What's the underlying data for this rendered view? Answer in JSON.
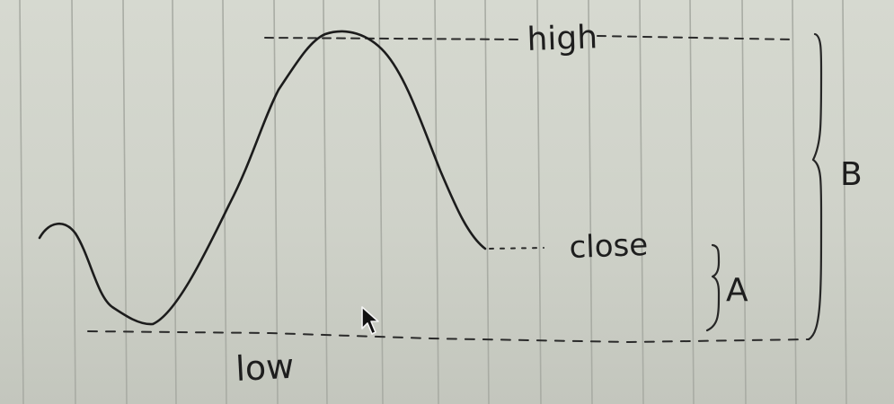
{
  "watermark": "",
  "labels": {
    "high": "high",
    "close": "close",
    "low": "low",
    "brace_a": "A",
    "brace_b": "B"
  },
  "colors": {
    "paper": "#d3d6cd",
    "rule_line": "#a9aca4",
    "ink": "#1c1c1c",
    "watermark": "#e86b73"
  },
  "cursor": {
    "icon": "mouse-pointer-icon"
  }
}
